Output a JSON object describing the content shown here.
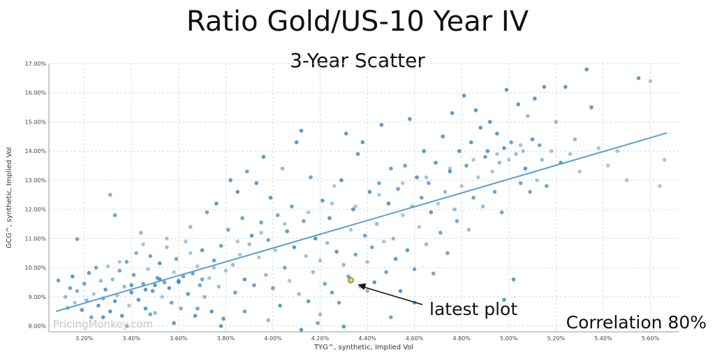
{
  "chart_data": {
    "type": "scatter",
    "title": "Ratio Gold/US-10 Year IV",
    "subtitle": "3-Year Scatter",
    "xlabel": "TYG^, synthetic, Implied Vol",
    "ylabel": "GCG^, synthetic, Implied Vol",
    "xlim": [
      3.05,
      5.72
    ],
    "ylim": [
      7.8,
      17.0
    ],
    "x_ticks": [
      "3.20%",
      "3.40%",
      "3.60%",
      "3.80%",
      "4.00%",
      "4.20%",
      "4.40%",
      "4.60%",
      "4.80%",
      "5.00%",
      "5.20%",
      "5.40%",
      "5.60%"
    ],
    "y_ticks": [
      "8.00%",
      "9.00%",
      "10.00%",
      "11.00%",
      "12.00%",
      "13.00%",
      "14.00%",
      "15.00%",
      "16.00%",
      "17.00%"
    ],
    "grid": true,
    "point_color": "#2b7bba",
    "trend_color": "#5a9fcf",
    "trendline": {
      "x": [
        3.08,
        5.67
      ],
      "y": [
        8.5,
        14.62
      ]
    },
    "latest_point": {
      "x": 4.33,
      "y": 9.57,
      "color": "#f2d22e"
    },
    "annotations": {
      "latest": "latest plot",
      "correlation": "Correlation 80%"
    },
    "watermark": "PricingMonkey.com",
    "points": [
      [
        3.09,
        9.56,
        0.8
      ],
      [
        3.12,
        9.0,
        0.6
      ],
      [
        3.13,
        8.62,
        0.7
      ],
      [
        3.14,
        9.3,
        0.8
      ],
      [
        3.15,
        9.7,
        0.9
      ],
      [
        3.16,
        8.8,
        0.5
      ],
      [
        3.17,
        10.98,
        0.8
      ],
      [
        3.17,
        9.2,
        0.7
      ],
      [
        3.19,
        8.55,
        0.9
      ],
      [
        3.2,
        9.45,
        0.8
      ],
      [
        3.21,
        8.88,
        0.6
      ],
      [
        3.22,
        9.82,
        0.9
      ],
      [
        3.23,
        8.3,
        0.8
      ],
      [
        3.24,
        9.1,
        0.5
      ],
      [
        3.25,
        10.0,
        0.8
      ],
      [
        3.26,
        8.7,
        0.9
      ],
      [
        3.27,
        9.55,
        0.6
      ],
      [
        3.28,
        8.95,
        0.8
      ],
      [
        3.29,
        9.25,
        0.9
      ],
      [
        3.3,
        10.05,
        0.5
      ],
      [
        3.31,
        12.5,
        0.7
      ],
      [
        3.31,
        8.5,
        0.9
      ],
      [
        3.32,
        9.6,
        0.6
      ],
      [
        3.33,
        11.8,
        0.8
      ],
      [
        3.33,
        8.85,
        0.9
      ],
      [
        3.34,
        9.05,
        0.5
      ],
      [
        3.35,
        9.9,
        0.8
      ],
      [
        3.36,
        8.35,
        0.9
      ],
      [
        3.37,
        9.35,
        0.6
      ],
      [
        3.38,
        10.2,
        0.8
      ],
      [
        3.39,
        8.7,
        0.5
      ],
      [
        3.4,
        9.15,
        0.9
      ],
      [
        3.41,
        9.75,
        0.8
      ],
      [
        3.42,
        10.5,
        0.7
      ],
      [
        3.43,
        8.9,
        0.9
      ],
      [
        3.44,
        11.2,
        0.6
      ],
      [
        3.45,
        9.45,
        0.8
      ],
      [
        3.46,
        8.6,
        0.9
      ],
      [
        3.47,
        9.95,
        0.5
      ],
      [
        3.48,
        10.4,
        0.8
      ],
      [
        3.49,
        9.2,
        0.9
      ],
      [
        3.5,
        8.45,
        0.6
      ],
      [
        3.51,
        9.65,
        0.8
      ],
      [
        3.52,
        10.15,
        0.9
      ],
      [
        3.53,
        9.0,
        0.5
      ],
      [
        3.54,
        9.5,
        0.8
      ],
      [
        3.55,
        10.7,
        0.6
      ],
      [
        3.56,
        9.3,
        0.9
      ],
      [
        3.57,
        8.8,
        0.8
      ],
      [
        3.58,
        9.85,
        0.5
      ],
      [
        3.59,
        10.3,
        0.8
      ],
      [
        3.6,
        9.55,
        0.9
      ],
      [
        3.61,
        8.6,
        0.7
      ],
      [
        3.62,
        9.7,
        0.8
      ],
      [
        3.63,
        10.9,
        0.5
      ],
      [
        3.64,
        9.1,
        0.9
      ],
      [
        3.65,
        11.4,
        0.6
      ],
      [
        3.66,
        9.8,
        0.8
      ],
      [
        3.67,
        8.35,
        0.9
      ],
      [
        3.68,
        10.05,
        0.5
      ],
      [
        3.69,
        9.4,
        0.8
      ],
      [
        3.7,
        10.6,
        0.9
      ],
      [
        3.71,
        9.0,
        0.6
      ],
      [
        3.72,
        11.9,
        0.8
      ],
      [
        3.73,
        9.65,
        0.5
      ],
      [
        3.74,
        8.5,
        0.9
      ],
      [
        3.75,
        10.25,
        0.8
      ],
      [
        3.76,
        12.2,
        0.9
      ],
      [
        3.77,
        9.35,
        0.6
      ],
      [
        3.78,
        10.75,
        0.8
      ],
      [
        3.79,
        8.25,
        0.9
      ],
      [
        3.8,
        9.9,
        0.5
      ],
      [
        3.81,
        11.3,
        0.8
      ],
      [
        3.82,
        13.0,
        0.9
      ],
      [
        3.83,
        10.1,
        0.6
      ],
      [
        3.84,
        9.15,
        0.8
      ],
      [
        3.85,
        12.6,
        0.9
      ],
      [
        3.86,
        10.45,
        0.5
      ],
      [
        3.87,
        11.7,
        0.8
      ],
      [
        3.88,
        9.6,
        0.9
      ],
      [
        3.89,
        13.3,
        0.8
      ],
      [
        3.9,
        10.8,
        0.6
      ],
      [
        3.91,
        11.1,
        0.9
      ],
      [
        3.92,
        9.4,
        0.8
      ],
      [
        3.93,
        12.9,
        0.9
      ],
      [
        3.94,
        10.35,
        0.5
      ],
      [
        3.95,
        11.55,
        0.8
      ],
      [
        3.96,
        13.8,
        0.9
      ],
      [
        3.97,
        9.75,
        0.6
      ],
      [
        3.98,
        10.95,
        0.8
      ],
      [
        3.99,
        12.4,
        0.9
      ],
      [
        4.0,
        9.3,
        0.8
      ],
      [
        4.01,
        10.6,
        0.5
      ],
      [
        4.02,
        11.8,
        0.8
      ],
      [
        4.03,
        8.7,
        0.9
      ],
      [
        4.04,
        13.4,
        0.6
      ],
      [
        4.05,
        10.0,
        0.8
      ],
      [
        4.06,
        11.25,
        0.9
      ],
      [
        4.07,
        9.55,
        0.5
      ],
      [
        4.08,
        12.1,
        0.8
      ],
      [
        4.09,
        10.7,
        0.9
      ],
      [
        4.1,
        14.3,
        0.9
      ],
      [
        4.11,
        9.1,
        0.6
      ],
      [
        4.12,
        14.7,
        0.9
      ],
      [
        4.13,
        11.6,
        0.8
      ],
      [
        4.14,
        10.4,
        0.5
      ],
      [
        4.15,
        8.85,
        0.9
      ],
      [
        4.16,
        13.1,
        0.8
      ],
      [
        4.17,
        9.85,
        0.6
      ],
      [
        4.18,
        11.0,
        0.9
      ],
      [
        4.19,
        8.1,
        0.8
      ],
      [
        4.2,
        10.25,
        0.5
      ],
      [
        4.21,
        12.3,
        0.9
      ],
      [
        4.22,
        9.45,
        0.8
      ],
      [
        4.23,
        10.85,
        0.6
      ],
      [
        4.24,
        11.7,
        0.9
      ],
      [
        4.25,
        9.15,
        0.8
      ],
      [
        4.26,
        12.8,
        0.5
      ],
      [
        4.27,
        10.55,
        0.9
      ],
      [
        4.28,
        8.8,
        0.8
      ],
      [
        4.29,
        13.0,
        0.9
      ],
      [
        4.3,
        10.1,
        0.6
      ],
      [
        4.31,
        14.6,
        0.9
      ],
      [
        4.32,
        9.7,
        0.8
      ],
      [
        4.33,
        11.3,
        0.5
      ],
      [
        4.34,
        12.0,
        0.9
      ],
      [
        4.35,
        10.45,
        0.8
      ],
      [
        4.36,
        13.9,
        0.9
      ],
      [
        4.37,
        9.35,
        0.6
      ],
      [
        4.38,
        14.3,
        0.9
      ],
      [
        4.39,
        11.1,
        0.8
      ],
      [
        4.4,
        10.2,
        0.5
      ],
      [
        4.41,
        12.6,
        0.9
      ],
      [
        4.42,
        10.7,
        0.8
      ],
      [
        4.43,
        9.5,
        0.9
      ],
      [
        4.44,
        11.5,
        0.6
      ],
      [
        4.45,
        12.9,
        0.8
      ],
      [
        4.46,
        14.9,
        0.9
      ],
      [
        4.47,
        10.9,
        0.5
      ],
      [
        4.48,
        9.85,
        0.8
      ],
      [
        4.49,
        12.2,
        0.9
      ],
      [
        4.5,
        13.4,
        0.8
      ],
      [
        4.51,
        11.0,
        0.6
      ],
      [
        4.52,
        10.3,
        0.9
      ],
      [
        4.53,
        12.7,
        0.8
      ],
      [
        4.54,
        9.2,
        0.9
      ],
      [
        4.55,
        11.8,
        0.5
      ],
      [
        4.56,
        13.5,
        0.8
      ],
      [
        4.57,
        10.6,
        0.9
      ],
      [
        4.58,
        15.1,
        0.9
      ],
      [
        4.59,
        12.1,
        0.6
      ],
      [
        4.6,
        9.95,
        0.8
      ],
      [
        4.61,
        13.1,
        0.9
      ],
      [
        4.62,
        11.4,
        0.5
      ],
      [
        4.63,
        12.4,
        0.8
      ],
      [
        4.64,
        14.0,
        0.9
      ],
      [
        4.65,
        10.8,
        0.6
      ],
      [
        4.66,
        12.9,
        0.8
      ],
      [
        4.67,
        11.9,
        0.9
      ],
      [
        4.68,
        9.8,
        0.8
      ],
      [
        4.69,
        13.6,
        0.9
      ],
      [
        4.7,
        12.2,
        0.5
      ],
      [
        4.71,
        11.2,
        0.8
      ],
      [
        4.72,
        14.5,
        0.9
      ],
      [
        4.73,
        12.6,
        0.6
      ],
      [
        4.74,
        10.5,
        0.8
      ],
      [
        4.75,
        13.3,
        0.9
      ],
      [
        4.76,
        15.3,
        0.9
      ],
      [
        4.77,
        12.0,
        0.6
      ],
      [
        4.78,
        11.6,
        0.8
      ],
      [
        4.79,
        14.0,
        0.9
      ],
      [
        4.8,
        12.8,
        0.5
      ],
      [
        4.81,
        15.9,
        0.9
      ],
      [
        4.82,
        13.5,
        0.8
      ],
      [
        4.83,
        11.3,
        0.6
      ],
      [
        4.84,
        14.3,
        0.9
      ],
      [
        4.85,
        12.4,
        0.8
      ],
      [
        4.86,
        15.4,
        0.9
      ],
      [
        4.87,
        13.1,
        0.5
      ],
      [
        4.88,
        14.8,
        0.9
      ],
      [
        4.89,
        12.1,
        0.6
      ],
      [
        4.9,
        13.8,
        0.8
      ],
      [
        4.91,
        14.0,
        0.9
      ],
      [
        4.92,
        15.0,
        0.9
      ],
      [
        4.93,
        13.3,
        0.5
      ],
      [
        4.94,
        12.6,
        0.8
      ],
      [
        4.95,
        14.6,
        0.9
      ],
      [
        4.96,
        13.6,
        0.6
      ],
      [
        4.97,
        11.9,
        0.8
      ],
      [
        4.98,
        14.1,
        0.9
      ],
      [
        4.99,
        16.1,
        0.9
      ],
      [
        5.0,
        13.7,
        0.5
      ],
      [
        5.01,
        14.3,
        0.8
      ],
      [
        5.02,
        9.6,
        0.9
      ],
      [
        5.03,
        13.9,
        0.6
      ],
      [
        5.04,
        15.6,
        0.9
      ],
      [
        5.05,
        12.9,
        0.8
      ],
      [
        5.06,
        14.0,
        0.5
      ],
      [
        5.07,
        13.4,
        0.9
      ],
      [
        5.08,
        15.2,
        0.6
      ],
      [
        5.09,
        12.6,
        0.8
      ],
      [
        5.1,
        14.4,
        0.9
      ],
      [
        5.11,
        15.8,
        0.9
      ],
      [
        5.12,
        13.0,
        0.5
      ],
      [
        5.13,
        14.2,
        0.8
      ],
      [
        5.14,
        13.7,
        0.6
      ],
      [
        5.15,
        16.2,
        0.9
      ],
      [
        5.16,
        12.8,
        0.8
      ],
      [
        5.18,
        14.0,
        0.5
      ],
      [
        5.2,
        15.0,
        0.6
      ],
      [
        5.22,
        13.6,
        0.9
      ],
      [
        5.24,
        16.2,
        0.9
      ],
      [
        5.26,
        13.9,
        0.5
      ],
      [
        5.28,
        14.4,
        0.6
      ],
      [
        5.3,
        13.3,
        0.5
      ],
      [
        5.33,
        16.8,
        0.9
      ],
      [
        5.35,
        15.5,
        0.9
      ],
      [
        5.38,
        14.1,
        0.5
      ],
      [
        5.42,
        13.5,
        0.5
      ],
      [
        5.46,
        14.0,
        0.5
      ],
      [
        5.5,
        13.0,
        0.5
      ],
      [
        5.55,
        16.5,
        0.9
      ],
      [
        5.6,
        16.4,
        0.5
      ],
      [
        5.64,
        12.8,
        0.5
      ],
      [
        5.66,
        13.7,
        0.5
      ],
      [
        4.98,
        8.9,
        0.9
      ],
      [
        4.3,
        7.98,
        0.9
      ],
      [
        4.12,
        7.87,
        0.9
      ],
      [
        4.6,
        8.8,
        0.8
      ],
      [
        4.2,
        8.4,
        0.6
      ],
      [
        4.5,
        8.3,
        0.8
      ],
      [
        4.4,
        9.2,
        0.6
      ],
      [
        3.35,
        10.2,
        0.5
      ],
      [
        3.45,
        10.8,
        0.5
      ],
      [
        3.55,
        11.0,
        0.5
      ],
      [
        3.65,
        10.5,
        0.5
      ],
      [
        3.75,
        10.0,
        0.5
      ],
      [
        3.85,
        10.9,
        0.5
      ],
      [
        3.95,
        11.2,
        0.5
      ],
      [
        4.05,
        11.5,
        0.5
      ],
      [
        4.15,
        11.9,
        0.5
      ],
      [
        4.25,
        12.2,
        0.5
      ],
      [
        4.35,
        12.1,
        0.5
      ],
      [
        4.45,
        12.5,
        0.5
      ],
      [
        4.55,
        12.9,
        0.5
      ],
      [
        4.65,
        13.1,
        0.5
      ],
      [
        4.75,
        13.4,
        0.5
      ],
      [
        4.85,
        13.7,
        0.5
      ],
      [
        4.95,
        13.9,
        0.5
      ],
      [
        5.05,
        14.2,
        0.5
      ],
      [
        3.28,
        8.3,
        0.9
      ],
      [
        3.38,
        8.0,
        0.8
      ],
      [
        3.48,
        8.4,
        0.8
      ],
      [
        3.58,
        8.1,
        0.9
      ],
      [
        3.68,
        8.6,
        0.8
      ],
      [
        3.78,
        8.0,
        0.9
      ],
      [
        3.88,
        8.5,
        0.8
      ],
      [
        3.98,
        8.2,
        0.6
      ],
      [
        3.5,
        9.4,
        0.9
      ],
      [
        3.46,
        9.25,
        0.9
      ],
      [
        3.52,
        9.6,
        0.9
      ],
      [
        3.4,
        9.4,
        0.9
      ],
      [
        3.6,
        9.5,
        0.8
      ],
      [
        3.7,
        9.6,
        0.8
      ]
    ]
  }
}
